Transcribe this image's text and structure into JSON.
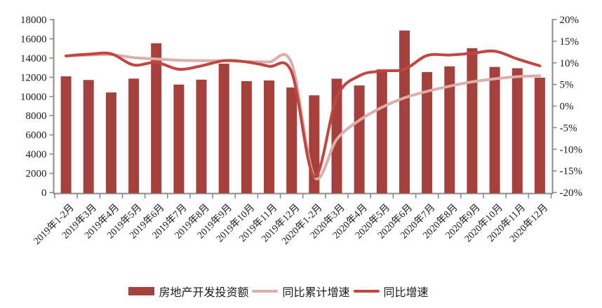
{
  "colors": {
    "bar": "#A6403C",
    "line_cumulative": "#DCADA9",
    "line_yoy": "#C1463F",
    "axis": "#8A8A8A",
    "label_text": "#1A1A1A"
  },
  "legend_items": [
    {
      "label": "房地产开发投资额",
      "swatch": "bar"
    },
    {
      "label": "同比累计增速",
      "swatch": "line_cumulative"
    },
    {
      "label": "同比增速",
      "swatch": "line_yoy"
    }
  ],
  "chart_data": {
    "type": "bar",
    "subtype": "combo-bar-line-dual-axis",
    "title": "",
    "xlabel": "",
    "ylabel": "",
    "grid": false,
    "legend_position": "bottom",
    "categories": [
      "2019年1-2月",
      "2019年3月",
      "2019年4月",
      "2019年5月",
      "2019年6月",
      "2019年7月",
      "2019年8月",
      "2019年9月",
      "2019年10月",
      "2019年11月",
      "2019年12月",
      "2020年1-2月",
      "2020年3月",
      "2020年4月",
      "2020年5月",
      "2020年6月",
      "2020年7月",
      "2020年8月",
      "2020年9月",
      "2020年10月",
      "2020年11月",
      "2020年12月"
    ],
    "series": [
      {
        "name": "房地产开发投资额",
        "type": "bar",
        "axis": "left",
        "color_key": "bar",
        "values": [
          12090,
          11713,
          10414,
          11858,
          15534,
          11234,
          11746,
          13419,
          11595,
          11662,
          10929,
          10115,
          11848,
          11140,
          12817,
          16860,
          12545,
          13129,
          15030,
          13072,
          12936,
          11951
        ]
      },
      {
        "name": "同比累计增速",
        "type": "line",
        "axis": "right",
        "color_key": "line_cumulative",
        "values": [
          11.6,
          11.8,
          11.9,
          11.2,
          10.9,
          10.6,
          10.5,
          10.5,
          10.3,
          10.2,
          9.9,
          -16.3,
          -7.7,
          -3.3,
          -0.3,
          1.9,
          3.4,
          4.6,
          5.6,
          6.3,
          6.8,
          7.0
        ]
      },
      {
        "name": "同比增速",
        "type": "line",
        "axis": "right",
        "color_key": "line_yoy",
        "values": [
          11.6,
          12.0,
          12.1,
          9.5,
          10.1,
          8.5,
          9.3,
          10.5,
          10.2,
          9.2,
          7.8,
          -16.3,
          2.0,
          7.0,
          8.1,
          8.5,
          11.7,
          11.8,
          12.2,
          12.7,
          10.9,
          9.3
        ]
      }
    ],
    "left_axis": {
      "min": 0,
      "max": 18000,
      "step": 2000,
      "tick_labels": [
        "0",
        "2000",
        "4000",
        "6000",
        "8000",
        "10000",
        "12000",
        "14000",
        "16000",
        "18000"
      ]
    },
    "right_axis": {
      "min": -20,
      "max": 20,
      "step": 5,
      "tick_labels": [
        "-20%",
        "-15%",
        "-10%",
        "-5%",
        "0%",
        "5%",
        "10%",
        "15%",
        "20%"
      ]
    }
  }
}
